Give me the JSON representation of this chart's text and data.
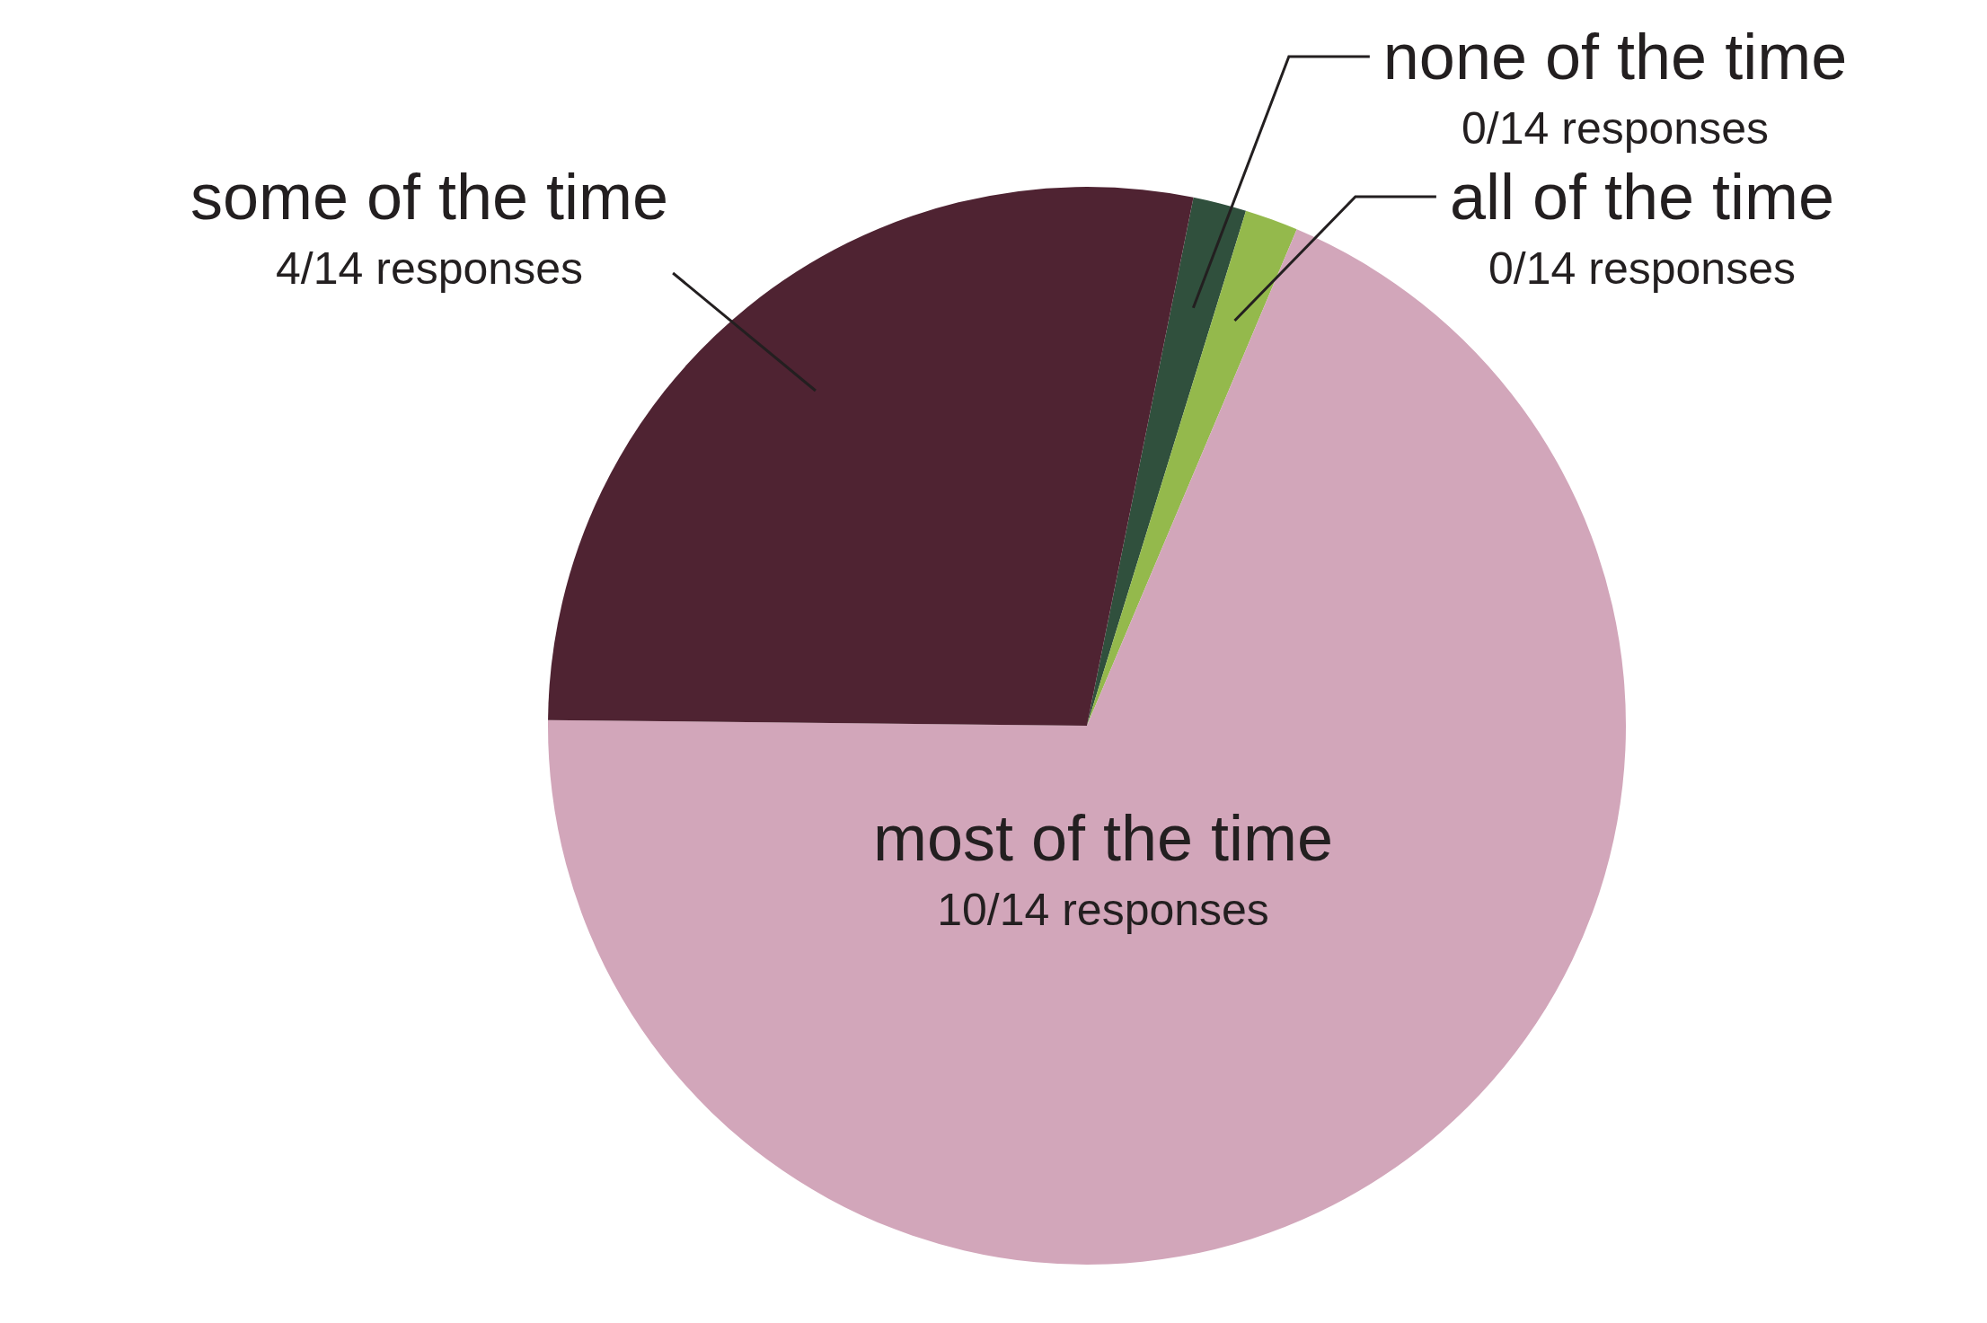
{
  "chart_data": {
    "type": "pie",
    "categories": [
      "none of the time",
      "all of the time",
      "most of the time",
      "some of the time"
    ],
    "values": [
      1.6,
      1.6,
      68.8,
      28.0
    ],
    "value_labels": [
      "0/14 responses",
      "0/14 responses",
      "10/14 responses",
      "4/14 responses"
    ],
    "colors": [
      "#30503d",
      "#94b94c",
      "#d2a6ba",
      "#4f2332"
    ],
    "legend": false
  }
}
